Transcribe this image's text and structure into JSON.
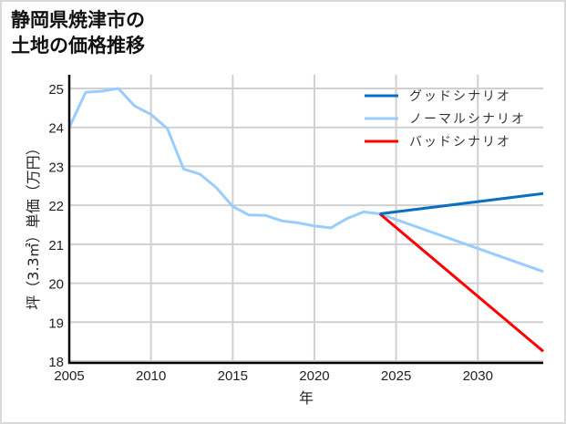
{
  "title_lines": [
    "静岡県焼津市の",
    "土地の価格推移"
  ],
  "chart_data": {
    "type": "line",
    "title": "静岡県焼津市の土地の価格推移",
    "xlabel": "年",
    "ylabel": "坪（3.3㎡）単価（万円）",
    "xlim": [
      2005,
      2034
    ],
    "ylim": [
      18,
      25.3
    ],
    "x_ticks": [
      2005,
      2010,
      2015,
      2020,
      2025,
      2030
    ],
    "y_ticks": [
      18,
      19,
      20,
      21,
      22,
      23,
      24,
      25
    ],
    "grid": true,
    "legend_position": "upper right",
    "series": [
      {
        "name": "グッドシナリオ",
        "color": "#0a6fc2",
        "x": [
          2024,
          2034
        ],
        "values": [
          21.78,
          22.3
        ]
      },
      {
        "name": "ノーマルシナリオ",
        "color": "#99ccff",
        "x": [
          2005,
          2006,
          2007,
          2008,
          2009,
          2010,
          2011,
          2012,
          2013,
          2014,
          2015,
          2016,
          2017,
          2018,
          2019,
          2020,
          2021,
          2022,
          2023,
          2024,
          2034
        ],
        "values": [
          24.0,
          24.9,
          24.93,
          25.0,
          24.55,
          24.33,
          23.97,
          22.93,
          22.8,
          22.45,
          21.97,
          21.75,
          21.74,
          21.6,
          21.55,
          21.47,
          21.42,
          21.66,
          21.83,
          21.78,
          20.3
        ]
      },
      {
        "name": "バッドシナリオ",
        "color": "#ff0000",
        "x": [
          2024,
          2034
        ],
        "values": [
          21.78,
          18.25
        ]
      }
    ]
  }
}
